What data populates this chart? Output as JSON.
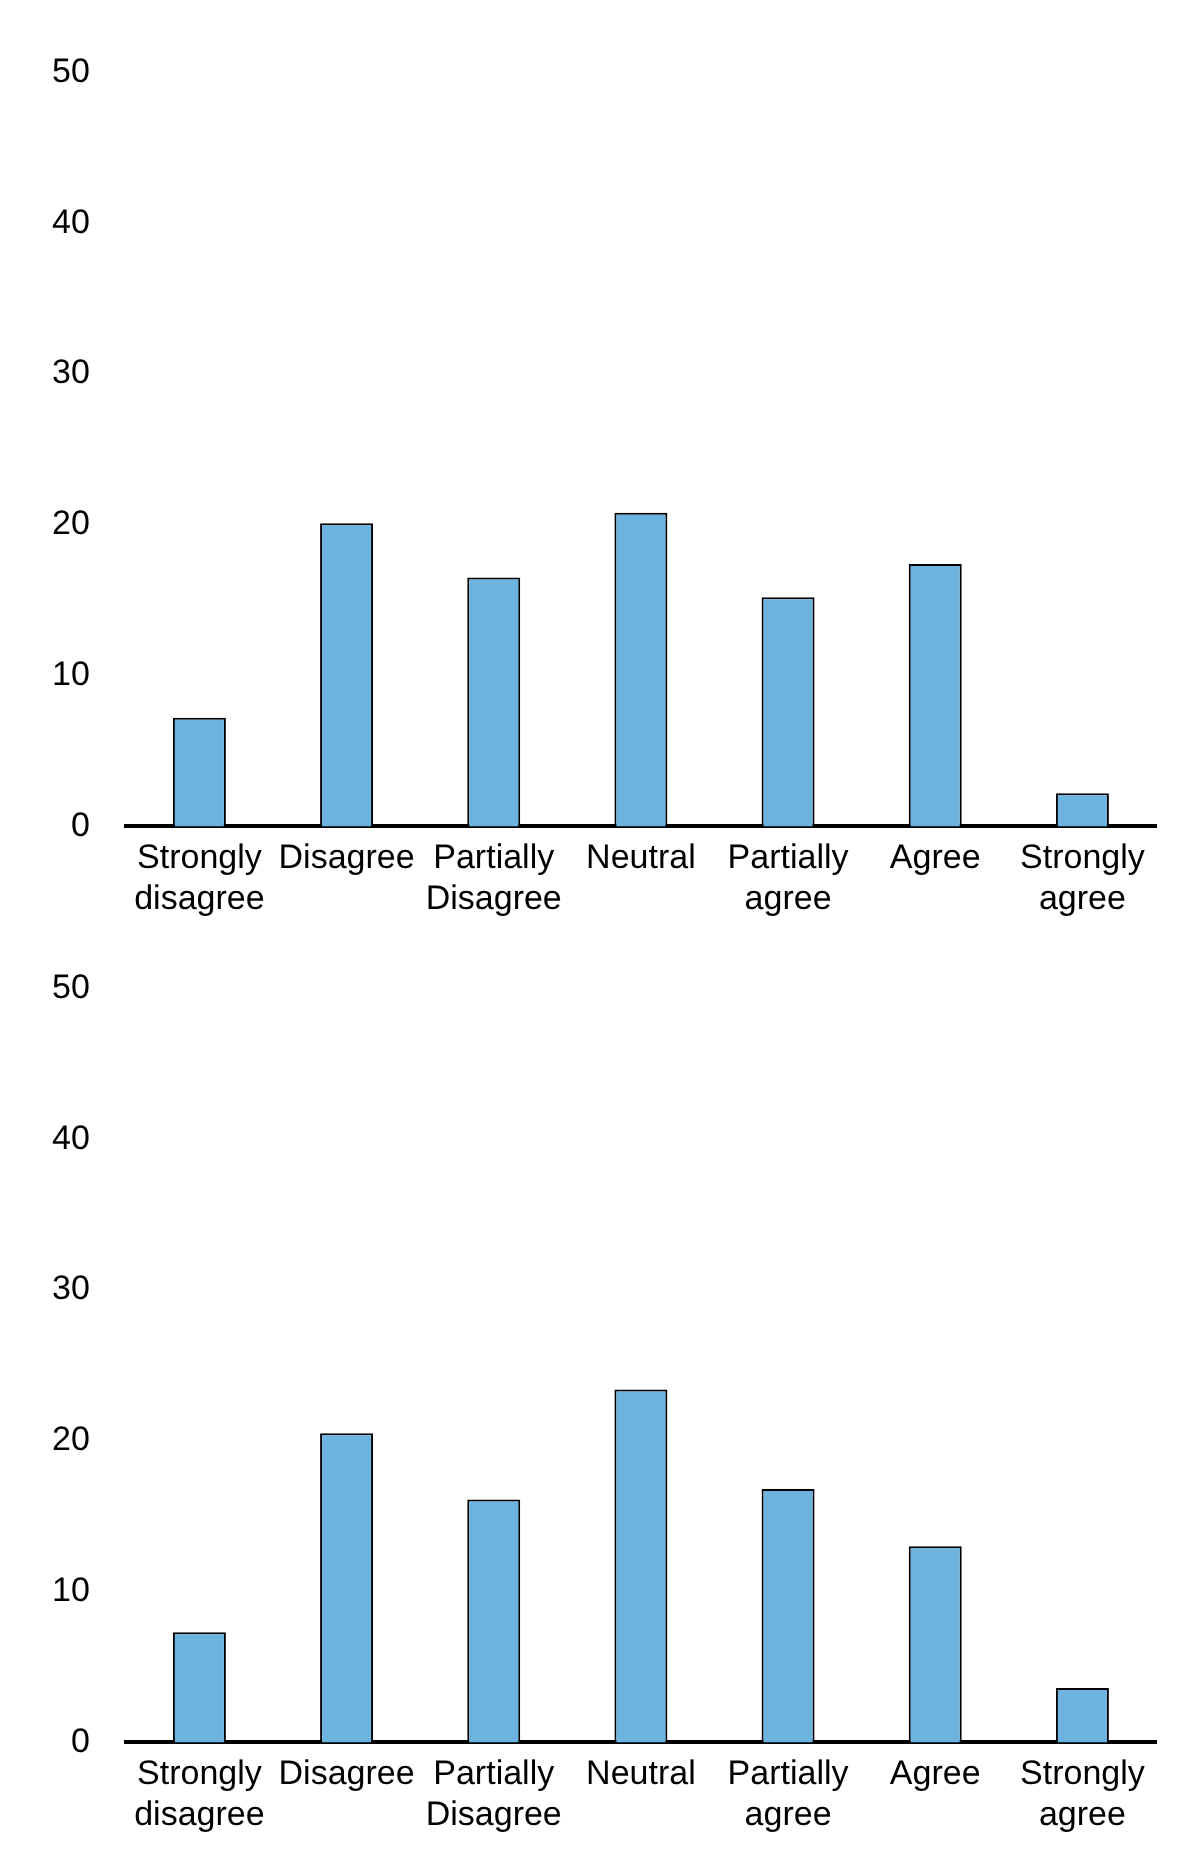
{
  "chart_data": [
    {
      "type": "bar",
      "categories": [
        "Strongly disagree",
        "Disagree",
        "Partially Disagree",
        "Neutral",
        "Partially agree",
        "Agree",
        "Strongly agree"
      ],
      "values": [
        7.2,
        20.1,
        16.5,
        20.8,
        15.2,
        17.4,
        2.2
      ],
      "color": "#6cb4df",
      "ylim": [
        0,
        50
      ],
      "yticks": [
        0,
        10,
        20,
        30,
        40,
        50
      ],
      "grid": false,
      "legend": false
    },
    {
      "type": "bar",
      "categories": [
        "Strongly disagree",
        "Disagree",
        "Partially Disagree",
        "Neutral",
        "Partially agree",
        "Agree",
        "Strongly agree"
      ],
      "values": [
        7.3,
        20.5,
        16.1,
        23.4,
        16.8,
        13.0,
        3.6
      ],
      "color": "#6cb4df",
      "ylim": [
        0,
        50
      ],
      "yticks": [
        0,
        10,
        20,
        30,
        40,
        50
      ],
      "grid": false,
      "legend": false
    }
  ]
}
